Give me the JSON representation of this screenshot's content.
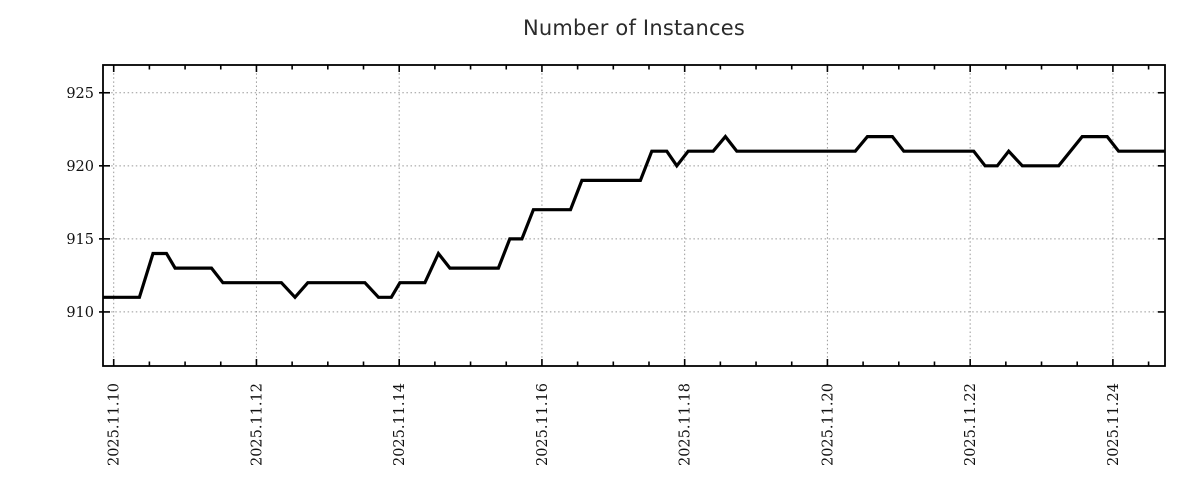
{
  "title": "Number of Instances",
  "chart_data": {
    "type": "line",
    "title": "Number of Instances",
    "grid": true,
    "legend": "none",
    "colors": {
      "line": "#000000",
      "grid": "#999999",
      "border": "#000000",
      "background": "#ffffff",
      "title_text": "#2b2b2b",
      "tick_text": "#111111"
    },
    "x_axis": {
      "unit": "days since 2025-11-10 00:00",
      "range": [
        -0.15,
        14.73
      ],
      "major_ticks": [
        {
          "t": 0,
          "label": "2025.11.10"
        },
        {
          "t": 2,
          "label": "2025.11.12"
        },
        {
          "t": 4,
          "label": "2025.11.14"
        },
        {
          "t": 6,
          "label": "2025.11.16"
        },
        {
          "t": 8,
          "label": "2025.11.18"
        },
        {
          "t": 10,
          "label": "2025.11.20"
        },
        {
          "t": 12,
          "label": "2025.11.22"
        },
        {
          "t": 14,
          "label": "2025.11.24"
        }
      ],
      "minor_tick_interval": 0.5
    },
    "y_axis": {
      "range": [
        906.3,
        926.9
      ],
      "ticks": [
        {
          "v": 910,
          "label": "910"
        },
        {
          "v": 915,
          "label": "915"
        },
        {
          "v": 920,
          "label": "920"
        },
        {
          "v": 925,
          "label": "925"
        }
      ]
    },
    "series": [
      {
        "name": "instances",
        "points": [
          [
            -0.15,
            911
          ],
          [
            0.36,
            911
          ],
          [
            0.55,
            914
          ],
          [
            0.74,
            914
          ],
          [
            0.86,
            913
          ],
          [
            1.37,
            913
          ],
          [
            1.53,
            912
          ],
          [
            2.35,
            912
          ],
          [
            2.54,
            911
          ],
          [
            2.72,
            912
          ],
          [
            3.52,
            912
          ],
          [
            3.71,
            911
          ],
          [
            3.89,
            911
          ],
          [
            4.01,
            912
          ],
          [
            4.36,
            912
          ],
          [
            4.55,
            914
          ],
          [
            4.71,
            913
          ],
          [
            5.39,
            913
          ],
          [
            5.55,
            915
          ],
          [
            5.72,
            915
          ],
          [
            5.88,
            917
          ],
          [
            6.4,
            917
          ],
          [
            6.56,
            919
          ],
          [
            7.38,
            919
          ],
          [
            7.54,
            921
          ],
          [
            7.75,
            921
          ],
          [
            7.89,
            920
          ],
          [
            8.05,
            921
          ],
          [
            8.4,
            921
          ],
          [
            8.57,
            922
          ],
          [
            8.73,
            921
          ],
          [
            10.39,
            921
          ],
          [
            10.56,
            922
          ],
          [
            10.91,
            922
          ],
          [
            11.07,
            921
          ],
          [
            12.05,
            921
          ],
          [
            12.21,
            920
          ],
          [
            12.38,
            920
          ],
          [
            12.54,
            921
          ],
          [
            12.73,
            920
          ],
          [
            13.24,
            920
          ],
          [
            13.57,
            922
          ],
          [
            13.92,
            922
          ],
          [
            14.08,
            921
          ],
          [
            14.73,
            921
          ]
        ]
      }
    ]
  }
}
